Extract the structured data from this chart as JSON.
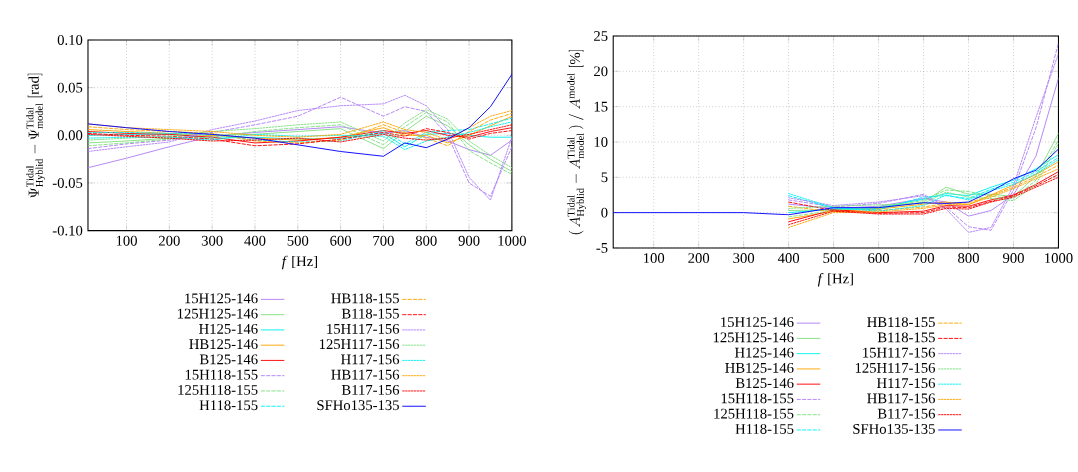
{
  "chart_data": [
    {
      "type": "line",
      "xlabel": "*f* [Hz]",
      "ylabel": "\\Psi^{\\mathrm{Tidal}}_{\\mathrm{Hyblid}} - \\Psi^{\\mathrm{Tidal}}_{\\mathrm{model}}\\ [\\mathrm{rad}]",
      "xlim": [
        10,
        1000
      ],
      "ylim": [
        -0.1,
        0.1
      ],
      "xticks": [
        100,
        200,
        300,
        400,
        500,
        600,
        700,
        800,
        900,
        1000
      ],
      "yticks": [
        {
          "value": -0.1,
          "label": "-0.10"
        },
        {
          "value": -0.05,
          "label": "-0.05"
        },
        {
          "value": 0,
          "label": "0.00"
        },
        {
          "value": 0.05,
          "label": "0.05"
        },
        {
          "value": 0.1,
          "label": "0.10"
        }
      ],
      "grid": true,
      "legend": "bottom",
      "marker": "none",
      "x": [
        10,
        100,
        200,
        300,
        400,
        500,
        600,
        700,
        750,
        800,
        850,
        900,
        950,
        1000
      ],
      "series": [
        {
          "name": "15H125-146",
          "color": "#b080f8",
          "line_style": "solid",
          "values": [
            -0.034,
            -0.024,
            -0.012,
            -0.001,
            0.003,
            0.006,
            0.009,
            0.002,
            0.005,
            -0.002,
            -0.006,
            -0.015,
            -0.021,
            -0.005
          ]
        },
        {
          "name": "125H125-146",
          "color": "#80e080",
          "line_style": "solid",
          "values": [
            -0.008,
            -0.006,
            -0.003,
            0.0,
            0.001,
            0.004,
            0.007,
            -0.014,
            0.004,
            0.02,
            0.01,
            -0.01,
            -0.025,
            -0.038
          ]
        },
        {
          "name": "H125-146",
          "color": "#00f0f0",
          "line_style": "solid",
          "values": [
            0.0,
            0.001,
            0.001,
            -0.003,
            -0.002,
            -0.004,
            -0.003,
            0.002,
            -0.012,
            0.001,
            0.002,
            0.0,
            -0.002,
            -0.002
          ]
        },
        {
          "name": "HB125-146",
          "color": "#ffa500",
          "line_style": "solid",
          "values": [
            0.006,
            0.004,
            0.002,
            0.0,
            -0.003,
            -0.005,
            -0.002,
            0.008,
            0.0,
            0.0,
            -0.008,
            0.0,
            0.01,
            0.02
          ]
        },
        {
          "name": "B125-146",
          "color": "#ff0000",
          "line_style": "solid",
          "values": [
            0.004,
            0.002,
            0.001,
            -0.002,
            -0.008,
            -0.006,
            -0.002,
            0.005,
            0.002,
            0.005,
            0.0,
            -0.002,
            0.004,
            0.008
          ]
        },
        {
          "name": "15H118-155",
          "color": "#b080f8",
          "line_style": "dashed",
          "values": [
            -0.014,
            -0.009,
            -0.005,
            0.003,
            0.011,
            0.02,
            0.04,
            0.02,
            0.03,
            0.025,
            0.0,
            -0.05,
            -0.064,
            -0.012
          ]
        },
        {
          "name": "125H118-155",
          "color": "#80e080",
          "line_style": "dashed",
          "values": [
            -0.011,
            -0.008,
            -0.004,
            -0.002,
            0.004,
            0.008,
            0.011,
            -0.01,
            0.009,
            0.024,
            0.014,
            -0.016,
            -0.029,
            -0.041
          ]
        },
        {
          "name": "H118-155",
          "color": "#00f0f0",
          "line_style": "dashed",
          "values": [
            0.003,
            0.003,
            0.002,
            0.001,
            -0.005,
            -0.007,
            -0.006,
            0.005,
            -0.009,
            0.003,
            0.005,
            0.006,
            0.012,
            0.018
          ]
        },
        {
          "name": "HB118-155",
          "color": "#ffa500",
          "line_style": "dashed",
          "values": [
            0.009,
            0.006,
            0.004,
            0.002,
            -0.006,
            -0.008,
            -0.005,
            0.011,
            0.003,
            -0.003,
            -0.011,
            0.004,
            0.016,
            0.023
          ]
        },
        {
          "name": "B118-155",
          "color": "#ff0000",
          "line_style": "dashed",
          "values": [
            0.002,
            0.0,
            -0.001,
            -0.004,
            -0.011,
            -0.009,
            -0.004,
            0.003,
            -0.001,
            0.007,
            0.003,
            -0.004,
            0.002,
            0.005
          ]
        },
        {
          "name": "15H117-156",
          "color": "#b080f8",
          "line_style": "dotted",
          "values": [
            -0.017,
            -0.012,
            -0.007,
            0.006,
            0.015,
            0.026,
            0.031,
            0.033,
            0.042,
            0.031,
            0.006,
            -0.044,
            -0.068,
            -0.002
          ]
        },
        {
          "name": "125H117-156",
          "color": "#80e080",
          "line_style": "dotted",
          "values": [
            -0.005,
            -0.003,
            -0.001,
            0.004,
            0.007,
            0.011,
            0.014,
            -0.006,
            0.013,
            0.027,
            0.017,
            -0.006,
            -0.021,
            -0.034
          ]
        },
        {
          "name": "H117-156",
          "color": "#00f0f0",
          "line_style": "dotted",
          "values": [
            -0.003,
            -0.002,
            -0.002,
            -0.005,
            0.001,
            -0.001,
            0.0,
            -0.001,
            -0.015,
            -0.006,
            -0.002,
            0.003,
            0.009,
            0.014
          ]
        },
        {
          "name": "HB117-156",
          "color": "#ffa500",
          "line_style": "dotted",
          "values": [
            0.012,
            0.008,
            0.006,
            0.004,
            0.0,
            -0.002,
            0.001,
            0.014,
            0.006,
            0.003,
            -0.005,
            0.008,
            0.02,
            0.026
          ]
        },
        {
          "name": "B117-156",
          "color": "#ff0000",
          "line_style": "dotted",
          "values": [
            0.001,
            -0.001,
            -0.003,
            -0.006,
            -0.005,
            -0.003,
            -0.007,
            0.001,
            -0.003,
            -0.005,
            -0.003,
            0.001,
            0.006,
            0.011
          ]
        },
        {
          "name": "SFHo135-135",
          "color": "#0000ff",
          "line_style": "solid",
          "values": [
            0.012,
            0.008,
            0.004,
            0.001,
            -0.003,
            -0.01,
            -0.017,
            -0.022,
            -0.008,
            -0.013,
            -0.004,
            0.008,
            0.03,
            0.064
          ]
        }
      ]
    },
    {
      "type": "line",
      "xlabel": "*f* [Hz]",
      "ylabel": "(\\,A^{\\mathrm{Tidal}}_{\\mathrm{Hyblid}} - A^{\\mathrm{Tidal}}_{\\mathrm{model}}\\,)\\ /\\ A^{\\mathrm{model}}\\ [\\%]",
      "xlim": [
        10,
        1000
      ],
      "ylim": [
        -5,
        25
      ],
      "xticks": [
        100,
        200,
        300,
        400,
        500,
        600,
        700,
        800,
        900,
        1000
      ],
      "yticks": [
        -5,
        0,
        5,
        10,
        15,
        20,
        25
      ],
      "grid": true,
      "legend": "bottom",
      "marker": "none",
      "x": [
        10,
        100,
        200,
        300,
        400,
        500,
        600,
        700,
        750,
        800,
        850,
        900,
        950,
        1000
      ],
      "series": [
        {
          "name": "15H125-146",
          "color": "#b080f8",
          "line_style": "solid",
          "values": [
            null,
            null,
            null,
            null,
            1.2,
            0.6,
            0.9,
            2.0,
            1.5,
            -0.5,
            0.3,
            2.5,
            8,
            19
          ]
        },
        {
          "name": "125H125-146",
          "color": "#80e080",
          "line_style": "solid",
          "values": [
            null,
            null,
            null,
            null,
            0.3,
            0.4,
            0.6,
            1.5,
            3.6,
            2.6,
            2.6,
            2.3,
            5.2,
            11.2
          ]
        },
        {
          "name": "H125-146",
          "color": "#00f0f0",
          "line_style": "solid",
          "values": [
            null,
            null,
            null,
            null,
            0.0,
            0.5,
            0.7,
            1.9,
            2.7,
            2.4,
            3.6,
            4.6,
            6.2,
            8.2
          ]
        },
        {
          "name": "HB125-146",
          "color": "#ffa500",
          "line_style": "solid",
          "values": [
            null,
            null,
            null,
            null,
            -0.9,
            0.2,
            0.5,
            1.2,
            1.5,
            1.1,
            2.5,
            3.9,
            5.4,
            7.2
          ]
        },
        {
          "name": "B125-146",
          "color": "#ff0000",
          "line_style": "solid",
          "values": [
            null,
            null,
            null,
            null,
            -1.3,
            0.4,
            0.0,
            0.2,
            1.0,
            0.9,
            1.8,
            2.5,
            4.0,
            5.8
          ]
        },
        {
          "name": "15H118-155",
          "color": "#b080f8",
          "line_style": "dashed",
          "values": [
            null,
            null,
            null,
            null,
            1.8,
            0.8,
            1.3,
            2.6,
            0.8,
            -2.0,
            -2.5,
            3.2,
            12,
            24
          ]
        },
        {
          "name": "125H118-155",
          "color": "#80e080",
          "line_style": "dashed",
          "values": [
            null,
            null,
            null,
            null,
            -0.6,
            0.3,
            0.8,
            1.7,
            3.2,
            3.0,
            2.3,
            2.0,
            4.6,
            10.3
          ]
        },
        {
          "name": "H118-155",
          "color": "#00f0f0",
          "line_style": "dashed",
          "values": [
            null,
            null,
            null,
            null,
            2.4,
            0.6,
            0.4,
            2.2,
            2.4,
            2.0,
            3.3,
            4.3,
            5.8,
            7.8
          ]
        },
        {
          "name": "HB118-155",
          "color": "#ffa500",
          "line_style": "dashed",
          "values": [
            null,
            null,
            null,
            null,
            0.9,
            0.1,
            0.3,
            0.8,
            1.3,
            1.4,
            2.4,
            3.6,
            5.1,
            6.7
          ]
        },
        {
          "name": "B118-155",
          "color": "#ff0000",
          "line_style": "dashed",
          "values": [
            null,
            null,
            null,
            null,
            1.5,
            0.3,
            -0.1,
            0.0,
            0.8,
            0.7,
            1.6,
            2.4,
            3.8,
            5.4
          ]
        },
        {
          "name": "15H117-156",
          "color": "#b080f8",
          "line_style": "dotted",
          "values": [
            null,
            null,
            null,
            null,
            2.1,
            1.0,
            1.5,
            2.4,
            0.5,
            -2.8,
            -2.1,
            3.8,
            13.5,
            22.5
          ]
        },
        {
          "name": "125H117-156",
          "color": "#80e080",
          "line_style": "dotted",
          "values": [
            null,
            null,
            null,
            null,
            0.6,
            0.9,
            1.1,
            1.3,
            2.9,
            2.2,
            2.0,
            1.7,
            4.0,
            9.8
          ]
        },
        {
          "name": "H117-156",
          "color": "#00f0f0",
          "line_style": "dotted",
          "values": [
            null,
            null,
            null,
            null,
            2.7,
            0.7,
            0.2,
            1.0,
            2.5,
            1.8,
            3.1,
            4.0,
            5.5,
            7.5
          ]
        },
        {
          "name": "HB117-156",
          "color": "#ffa500",
          "line_style": "dotted",
          "values": [
            null,
            null,
            null,
            null,
            -2.1,
            0.0,
            0.1,
            0.6,
            1.1,
            1.2,
            2.2,
            3.4,
            4.8,
            6.2
          ]
        },
        {
          "name": "B117-156",
          "color": "#ff0000",
          "line_style": "dotted",
          "values": [
            null,
            null,
            null,
            null,
            -1.7,
            0.2,
            -0.2,
            -0.2,
            0.6,
            0.5,
            1.5,
            2.2,
            3.6,
            5.0
          ]
        },
        {
          "name": "SFHo135-135",
          "color": "#0000ff",
          "line_style": "solid",
          "values": [
            0.0,
            0.0,
            0.0,
            0.0,
            -0.3,
            0.7,
            0.7,
            1.4,
            1.3,
            1.5,
            3.0,
            4.8,
            6.0,
            9.0
          ]
        }
      ]
    }
  ]
}
